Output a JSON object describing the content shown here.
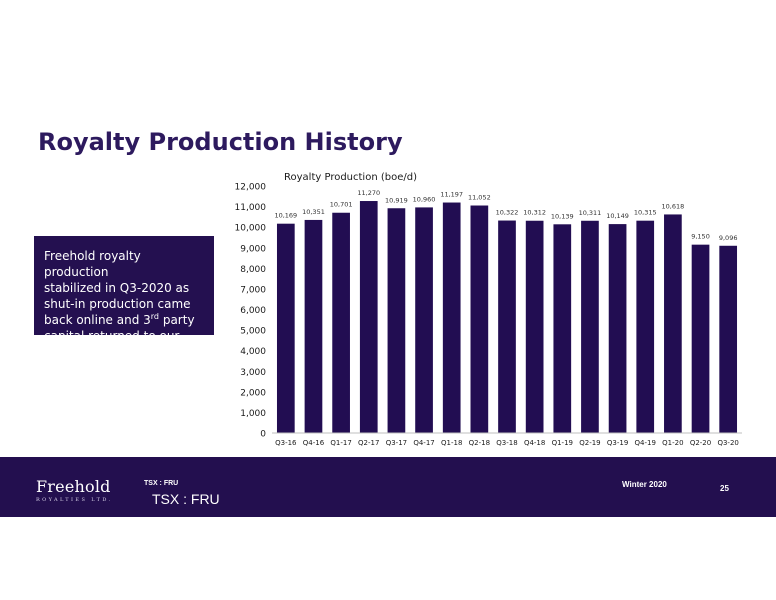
{
  "slide": {
    "title": "Royalty Production History",
    "callout": {
      "line1": "Freehold royalty production",
      "line2": "stabilized in Q3-2020 as",
      "line3": "shut-in production came",
      "line4_prefix": "back online and 3",
      "line4_sup": "rd",
      "line4_suffix": " party",
      "line5": "capital returned to our lands"
    }
  },
  "footer": {
    "logo_name": "Freehold",
    "logo_sub": "ROYALTIES LTD.",
    "ticker_small": "TSX : FRU",
    "ticker_large": "TSX : FRU",
    "season": "Winter 2020",
    "page_number": "25"
  },
  "colors": {
    "bar": "#220d52",
    "title": "#2d1a5e",
    "footer": "#230f4f"
  },
  "chart_data": {
    "type": "bar",
    "title": "Royalty Production (boe/d)",
    "xlabel": "",
    "ylabel": "",
    "ylim": [
      0,
      12000
    ],
    "yticks": [
      0,
      1000,
      2000,
      3000,
      4000,
      5000,
      6000,
      7000,
      8000,
      9000,
      10000,
      11000,
      12000
    ],
    "ytick_labels": [
      "0",
      "1,000",
      "2,000",
      "3,000",
      "4,000",
      "5,000",
      "6,000",
      "7,000",
      "8,000",
      "9,000",
      "10,000",
      "11,000",
      "12,000"
    ],
    "grid": false,
    "legend": "none",
    "categories": [
      "Q3-16",
      "Q4-16",
      "Q1-17",
      "Q2-17",
      "Q3-17",
      "Q4-17",
      "Q1-18",
      "Q2-18",
      "Q3-18",
      "Q4-18",
      "Q1-19",
      "Q2-19",
      "Q3-19",
      "Q4-19",
      "Q1-20",
      "Q2-20",
      "Q3-20"
    ],
    "values": [
      10169,
      10351,
      10701,
      11270,
      10919,
      10960,
      11197,
      11052,
      10322,
      10312,
      10139,
      10311,
      10149,
      10315,
      10618,
      9150,
      9096
    ],
    "data_labels": [
      "10,169",
      "10,351",
      "10,701",
      "11,270",
      "10,919",
      "10,960",
      "11,197",
      "11,052",
      "10,322",
      "10,312",
      "10,139",
      "10,311",
      "10,149",
      "10,315",
      "10,618",
      "9,150",
      "9,096"
    ]
  }
}
